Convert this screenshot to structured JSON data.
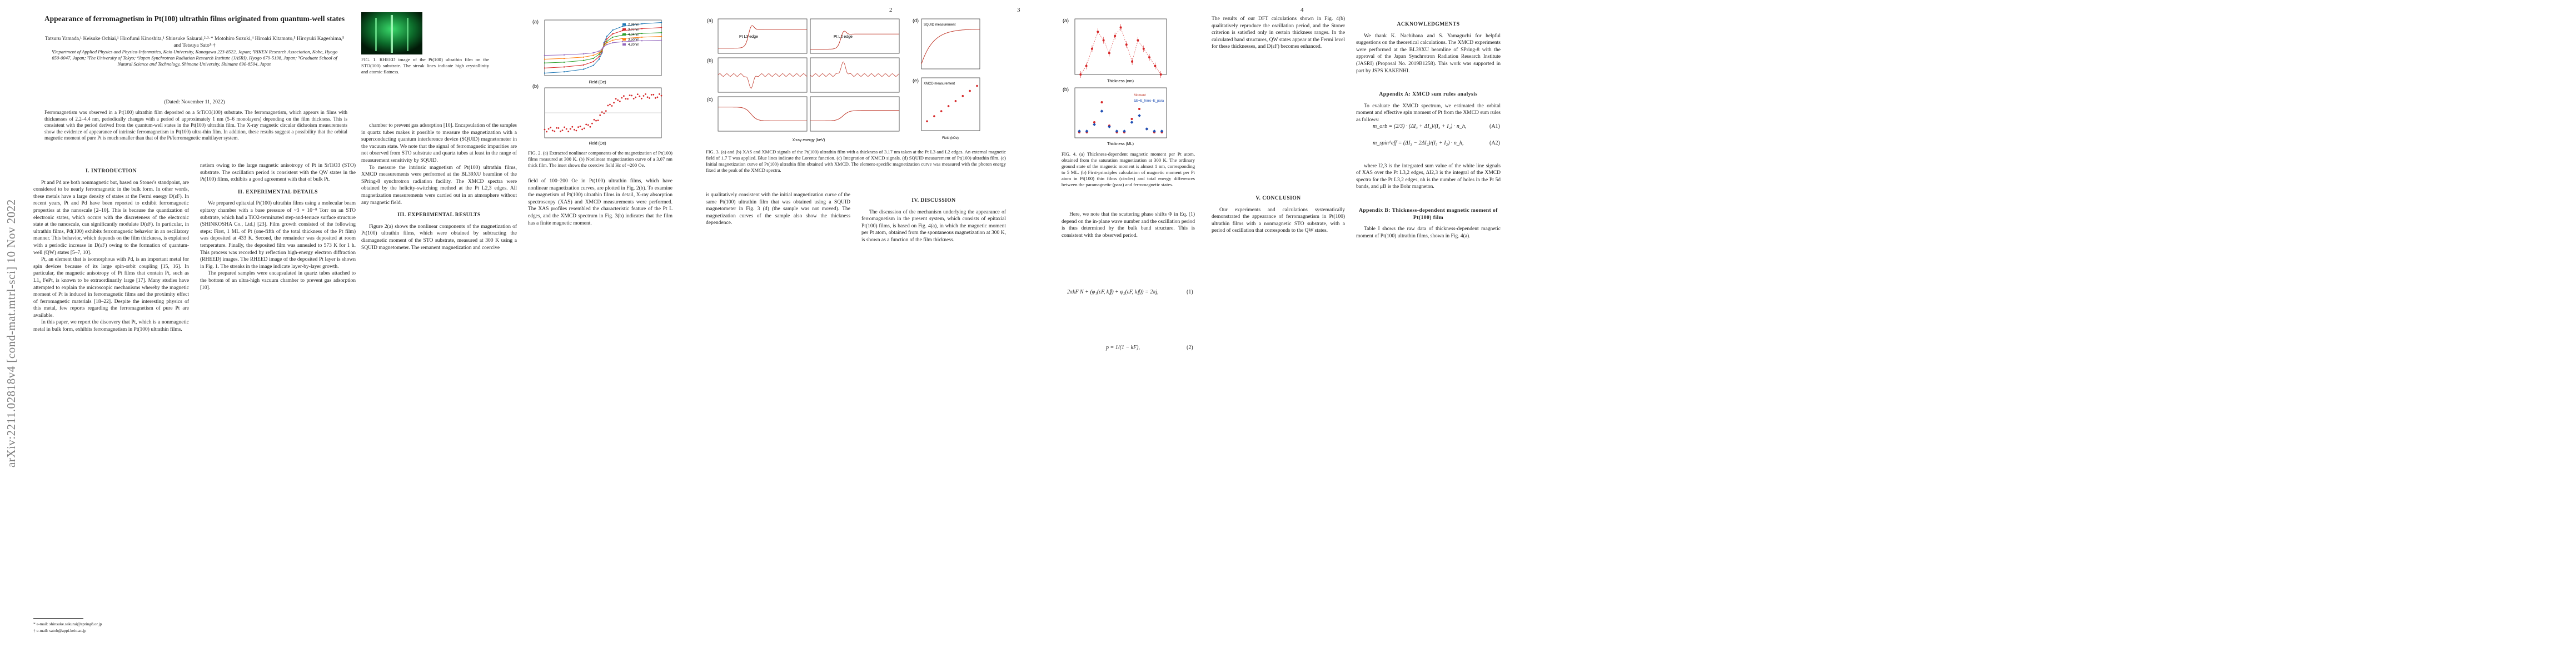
{
  "arxiv_id": "arXiv:2211.02818v4  [cond-mat.mtrl-sci]  10 Nov 2022",
  "page_numbers": [
    "2",
    "3",
    "4"
  ],
  "paper": {
    "title": "Appearance of ferromagnetism in Pt(100) ultrathin films originated from quantum-well states",
    "authors": "Tatsuru Yamada,¹ Keisuke Ochiai,¹ Hirofumi Kinoshita,¹ Shinsuke Sakurai,²·³·* Motohiro Suzuki,⁴ Hiroaki Kitamoto,⁵ Hiroyuki Kageshima,⁵ and Tetsuya Sato¹·†",
    "affiliations": "¹Department of Applied Physics and Physico-Informatics, Keio University, Kanagawa 223-8522, Japan; ²RIKEN Research Association, Kobe, Hyogo 650-0047, Japan; ³The University of Tokyo; ⁴Japan Synchrotron Radiation Research Institute (JASRI), Hyogo 679-5198, Japan; ⁵Graduate School of Natural Science and Technology, Shimane University, Shimane 690-8504, Japan",
    "date": "(Dated: November 11, 2022)",
    "abstract": "Ferromagnetism was observed in a Pt(100) ultrathin film deposited on a SrTiO3(100) substrate. The ferromagnetism, which appears in films with thicknesses of 2.2–4.4 nm, periodically changes with a period of approximately 1 nm (5–6 monolayers) depending on the film thickness. This is consistent with the period derived from the quantum-well states in the Pt(100) ultrathin film. The X-ray magnetic circular dichroism measurements show the evidence of appearance of intrinsic ferromagnetism in Pt(100) ultra-thin film. In addition, these results suggest a possibility that the orbital magnetic moment of pure Pt is much smaller than that of the Pt/ferromagnetic multilayer system.",
    "footnotes": [
      "* e-mail: shinsuke.sakurai@spring8.or.jp",
      "† e-mail: satoh@appi.keio.ac.jp"
    ]
  },
  "sections": {
    "intro": "I.   INTRODUCTION",
    "experimental": "II.   EXPERIMENTAL DETAILS",
    "results": "III.   EXPERIMENTAL RESULTS",
    "discussion": "IV.   DISCUSSION",
    "conclusion": "V.   CONCLUSION",
    "ack": "ACKNOWLEDGMENTS",
    "appendix_a": "Appendix A: XMCD sum rules analysis",
    "appendix_b": "Appendix B: Thickness-dependent magnetic moment of Pt(100) film"
  },
  "body_text": {
    "intro_p1": "Pt and Pd are both nonmagnetic but, based on Stoner's standpoint, are considered to be nearly ferromagnetic in the bulk form. In other words, these metals have a large density of states at the Fermi energy D(εF). In recent years, Pt and Pd have been reported to exhibit ferromagnetic properties at the nanoscale [2–10]. This is because the quantization of electronic states, which occurs with the discreteness of the electronic state at the nanoscale, can significantly modulate D(εF). In particular, in ultrathin films, Pd(100) exhibits ferromagnetic behavior in an oscillatory manner. This behavior, which depends on the film thickness, is explained with a periodic increase in D(εF) owing to the formation of quantum-well (QW) states [5–7, 10].",
    "intro_p2": "Pt, an element that is isomorphous with Pd, is an important metal for spin devices because of its large spin-orbit coupling [15, 16]. In particular, the magnetic anisotropy of Pt films that contain Pt, such as L1₀ FePt, is known to be extraordinarily large [17]. Many studies have attempted to explain the microscopic mechanisms whereby the magnetic moment of Pt is induced in ferromagnetic films and the proximity effect of ferromagnetic materials [18–22]. Despite the interesting physics of this metal, few reports regarding the ferromagnetism of pure Pt are available.",
    "intro_p3": "In this paper, we report the discovery that Pt, which is a nonmagnetic metal in bulk form, exhibits ferromagnetism in Pt(100) ultrathin films.",
    "p2_col2_a": "netism owing to the large magnetic anisotropy of Pt in SrTiO3 (STO) substrate. The oscillation period is consistent with the QW states in the Pt(100) films, exhibits a good agreement with that of bulk Pt.",
    "exp_p1": "We prepared epitaxial Pt(100) ultrathin films using a molecular beam epitaxy chamber with a base pressure of ~3 × 10⁻⁸ Torr on an STO substrate, which had a TiO2-terminated step-and-terrace surface structure (SHINKOSHA Co., Ltd.) [23]. Film growth consisted of the following steps: First, 1 ML of Pt (one-fifth of the total thickness of the Pt film) was deposited at 433 K. Second, the remainder was deposited at room temperature. Finally, the deposited film was annealed to 573 K for 1 h. This process was recorded by reflection high-energy electron diffraction (RHEED) images. The RHEED image of the deposited Pt layer is shown in Fig. 1. The streaks in the image indicate layer-by-layer growth.",
    "exp_p2": "The prepared samples were encapsulated in quartz tubes attached to the bottom of an ultra-high vacuum chamber to prevent gas adsorption [10].",
    "p2_col3": "chamber to prevent gas adsorption [10]. Encapsulation of the samples in quartz tubes makes it possible to measure the magnetization with a superconducting quantum interference device (SQUID) magnetometer in the vacuum state. We note that the signal of ferromagnetic impurities are not observed from STO substrate and quartz tubes at least in the range of measurement sensitivity by SQUID.",
    "p2_col3_b": "To measure the intrinsic magnetism of Pt(100) ultrathin films, XMCD measurements were performed at the BL39XU beamline of the SPring-8 synchrotron radiation facility. The XMCD spectra were obtained by the helicity-switching method at the Pt L2,3 edges. All magnetization measurements were carried out in an atmosphere without any magnetic field.",
    "results_p1": "Figure 2(a) shows the nonlinear components of the magnetization of Pt(100) ultrathin films, which were obtained by subtracting the diamagnetic moment of the STO substrate, measured at 300 K using a SQUID magnetometer. The remanent magnetization and coercive",
    "p3_col1": "field of 100–200 Oe in Pt(100) ultrathin films, which have nonlinear magnetization curves, are plotted in Fig. 2(b). To examine the magnetism of Pt(100) ultrathin films in detail, X-ray absorption spectroscopy (XAS) and XMCD measurements were performed. The XAS profiles resembled the characteristic feature of the Pt L edges, and the XMCD spectrum in Fig. 3(b) indicates that the film has a finite magnetic moment.",
    "p3_col2": "is qualitatively consistent with the initial magnetization curve of the same Pt(100) ultrathin film that was obtained using a SQUID magnetometer in Fig. 3 (d) (the sample was not moved). The magnetization curves of the sample also show the thickness dependence.",
    "discussion_p1": "The discussion of the mechanism underlying the appearance of ferromagnetism in the present system, which consists of epitaxial Pt(100) films, is based on Fig. 4(a), in which the magnetic moment per Pt atom, obtained from the spontaneous magnetization at 300 K, is shown as a function of the film thickness.",
    "p4_col1": "The results of our DFT calculations shown in Fig. 4(b) qualitatively reproduce the oscillation period, and the Stoner criterion is satisfied only in certain thickness ranges. In the calculated band structures, QW states appear at the Fermi level for these thicknesses, and D(εF) becomes enhanced.",
    "p4_col1_b": "Here, we note that the scattering phase shifts Φ in Eq. (1) depend on the in-plane wave number and the oscillation period is thus determined by the bulk band structure. This is consistent with the observed period.",
    "ack_p": "We thank K. Nachibana and S. Yamaguchi for helpful suggestions on the theoretical calculations. The XMCD experiments were performed at the BL39XU beamline of SPring-8 with the approval of the Japan Synchrotron Radiation Research Institute (JASRI) (Proposal No. 2019B1258). This work was supported in part by JSPS KAKENHI.",
    "appendix_a_p": "To evaluate the XMCD spectrum, we estimated the orbital moment and effective spin moment of Pt from the XMCD sum rules as follows:",
    "appendix_a_p2": "where I2,3 is the integrated sum value of the white line signals of XAS over the Pt L3,2 edges, ΔI2,3 is the integral of the XMCD spectra for the Pt L3,2 edges, nh is the number of holes in the Pt 5d bands, and μB is the Bohr magneton.",
    "conclusion_p": "Our experiments and calculations systematically demonstrated the appearance of ferromagnetism in Pt(100) ultrathin films with a nonmagnetic STO substrate, with a period of oscillation that corresponds to the QW states.",
    "appendix_b_p": "Table I shows the raw data of thickness-dependent magnetic moment of Pt(100) ultrathin films, shown in Fig. 4(a)."
  },
  "equations": {
    "eq1": "2πkF N + (φ₁(εF, k∥) + φ₂(εF, k∥)) = 2πj,",
    "eq1_num": "(1)",
    "eq2": "p = 1/(1 − kF),",
    "eq2_num": "(2)",
    "eqA1": "m_orb = (2/3) · (ΔI₃ + ΔI₂)/(I₃ + I₂) · n_h,",
    "eqA1_num": "(A1)",
    "eqA2": "m_spin^eff = (ΔI₃ − 2ΔI₂)/(I₃ + I₂) · n_h,",
    "eqA2_num": "(A2)"
  },
  "figures": {
    "fig1_caption": "FIG. 1.   RHEED image of the Pt(100) ultrathin film on the STO(100) substrate. The streak lines indicate high crystallinity and atomic flatness.",
    "fig2_caption": "FIG. 2.   (a) Extracted nonlinear components of the magnetization of Pt(100) films measured at 300 K. (b) Nonlinear magnetization curve of a 3.07 nm thick film. The inset shows the coercive field Hc of ~200 Oe.",
    "fig3_caption": "FIG. 3.   (a) and (b) XAS and XMCD signals of the Pt(100) ultrathin film with a thickness of 3.17 nm taken at the Pt L3 and L2 edges. An external magnetic field of 1.7 T was applied. Blue lines indicate the Lorentz function. (c) Integration of XMCD signals. (d) SQUID measurement of Pt(100) ultrathin film. (e) Initial magnetization curve of Pt(100) ultrathin film obtained with XMCD. The element-specific magnetization curve was measured with the photon energy fixed at the peak of the XMCD spectra.",
    "fig4_caption": "FIG. 4.   (a) Thickness-dependent magnetic moment per Pt atom, obtained from the saturation magnetization at 300 K. The ordinary ground state of the magnetic moment is almost 1 nm, corresponding to 5 ML. (b) First-principles calculation of magnetic moment per Pt atom in Pt(100) thin films (circles) and total energy differences between the paramagnetic (para) and ferromagnetic states."
  },
  "fig1": {
    "panel": ""
  },
  "fig2a": {
    "panel_label": "(a)",
    "xlabel": "Field (Oe)",
    "ylabel": "Magnetization (emu/cm²)",
    "xticks": [
      "-30000",
      "-15000",
      "0",
      "15000",
      "30000"
    ],
    "legend": [
      "2.96nm",
      "3.07nm",
      "4.04nm",
      "3.50nm",
      "4.20nm"
    ],
    "colors": [
      "#1f77b4",
      "#d62728",
      "#2ca02c",
      "#ff7f0e",
      "#9467bd"
    ]
  },
  "fig2b": {
    "panel_label": "(b)",
    "xlabel": "Field (Oe)",
    "ylabel": "Magnetization (emu/cm²)",
    "xticks": [
      "-30000",
      "-15000",
      "0",
      "15000",
      "30000"
    ]
  },
  "fig3": {
    "panels": [
      "(a)",
      "(b)",
      "(c)",
      "(d)",
      "(e)"
    ],
    "labels_a": [
      "Pt L3 edge",
      "Pt L2 edge"
    ],
    "xlabel": "X-ray energy (keV)",
    "xticks": [
      "11.54",
      "11.56",
      "11.58",
      "11.60",
      "13.26",
      "13.28",
      "13.30",
      "13.32"
    ],
    "ylabel_a": "Normalized XAS (a.u.)",
    "ylabel_b": "XMCD (a.u.)",
    "ylabel_c": "Integral (a.u.)",
    "d_title": "SQUID measurement",
    "d_xlabel": "Field (kOe)",
    "e_title": "XMCD measurement",
    "e_ylabel": "XMCD signal (a.u.)",
    "e_xlabel": "Field (kOe)"
  },
  "fig4": {
    "panels": [
      "(a)",
      "(b)"
    ],
    "xlabel_a": "Thickness (nm)",
    "xlabel_b": "Thickness (ML)",
    "ylabel_a": "Magnetic moment (μB/atom)",
    "ylabel_b": "Magnetic moment (μB/atom)",
    "legend_b": [
      "Moment",
      "ΔE=E_ferro−E_para"
    ]
  },
  "chart_data": [
    {
      "type": "line",
      "panel": "Fig. 2(a)",
      "xlabel": "Field (Oe)",
      "ylabel": "Magnetization (emu/cm²)",
      "xlim": [
        -30000,
        30000
      ],
      "x": [
        -30000,
        -20000,
        -10000,
        -5000,
        -2000,
        -500,
        0,
        500,
        2000,
        5000,
        10000,
        20000,
        30000
      ],
      "series": [
        {
          "name": "2.96nm",
          "values": [
            -1.0,
            -0.95,
            -0.85,
            -0.7,
            -0.45,
            -0.2,
            0,
            0.2,
            0.45,
            0.7,
            0.85,
            0.95,
            1.0
          ]
        },
        {
          "name": "3.07nm",
          "values": [
            -0.8,
            -0.76,
            -0.68,
            -0.55,
            -0.35,
            -0.15,
            0,
            0.15,
            0.35,
            0.55,
            0.68,
            0.76,
            0.8
          ]
        },
        {
          "name": "4.04nm",
          "values": [
            -0.6,
            -0.57,
            -0.5,
            -0.42,
            -0.26,
            -0.1,
            0,
            0.1,
            0.26,
            0.42,
            0.5,
            0.57,
            0.6
          ]
        },
        {
          "name": "3.50nm",
          "values": [
            -0.45,
            -0.42,
            -0.37,
            -0.3,
            -0.2,
            -0.08,
            0,
            0.08,
            0.2,
            0.3,
            0.37,
            0.42,
            0.45
          ]
        },
        {
          "name": "4.20nm",
          "values": [
            -0.3,
            -0.28,
            -0.24,
            -0.2,
            -0.13,
            -0.05,
            0,
            0.05,
            0.13,
            0.2,
            0.24,
            0.28,
            0.3
          ]
        }
      ]
    },
    {
      "type": "scatter",
      "panel": "Fig. 4(a)",
      "xlabel": "Thickness (nm)",
      "ylabel": "Magnetic moment (μB/atom)",
      "x": [
        1.8,
        2.0,
        2.2,
        2.4,
        2.6,
        2.8,
        3.0,
        3.2,
        3.4,
        3.6,
        3.8,
        4.0,
        4.2,
        4.4,
        4.6
      ],
      "y": [
        0.0,
        0.02,
        0.06,
        0.1,
        0.08,
        0.05,
        0.09,
        0.11,
        0.07,
        0.03,
        0.08,
        0.06,
        0.04,
        0.02,
        0.0
      ]
    }
  ]
}
